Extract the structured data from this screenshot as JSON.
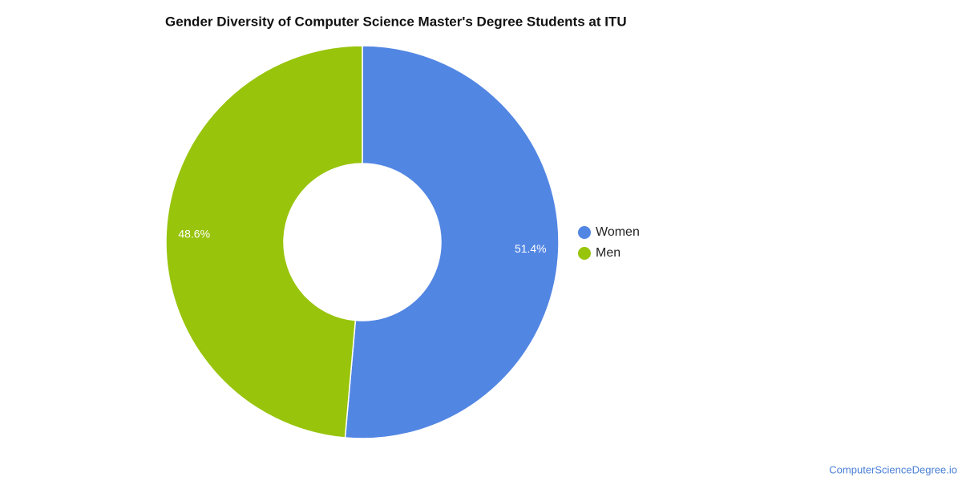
{
  "chart_data": {
    "type": "donut",
    "title": "Gender Diversity of Computer Science Master's Degree Students at ITU",
    "categories": [
      "Women",
      "Men"
    ],
    "values": [
      51.4,
      48.6
    ],
    "value_labels": [
      "51.4%",
      "48.6%"
    ],
    "colors": [
      "#5286e3",
      "#98c40c"
    ],
    "legend": "right",
    "source": "ComputerScienceDegree.io"
  }
}
